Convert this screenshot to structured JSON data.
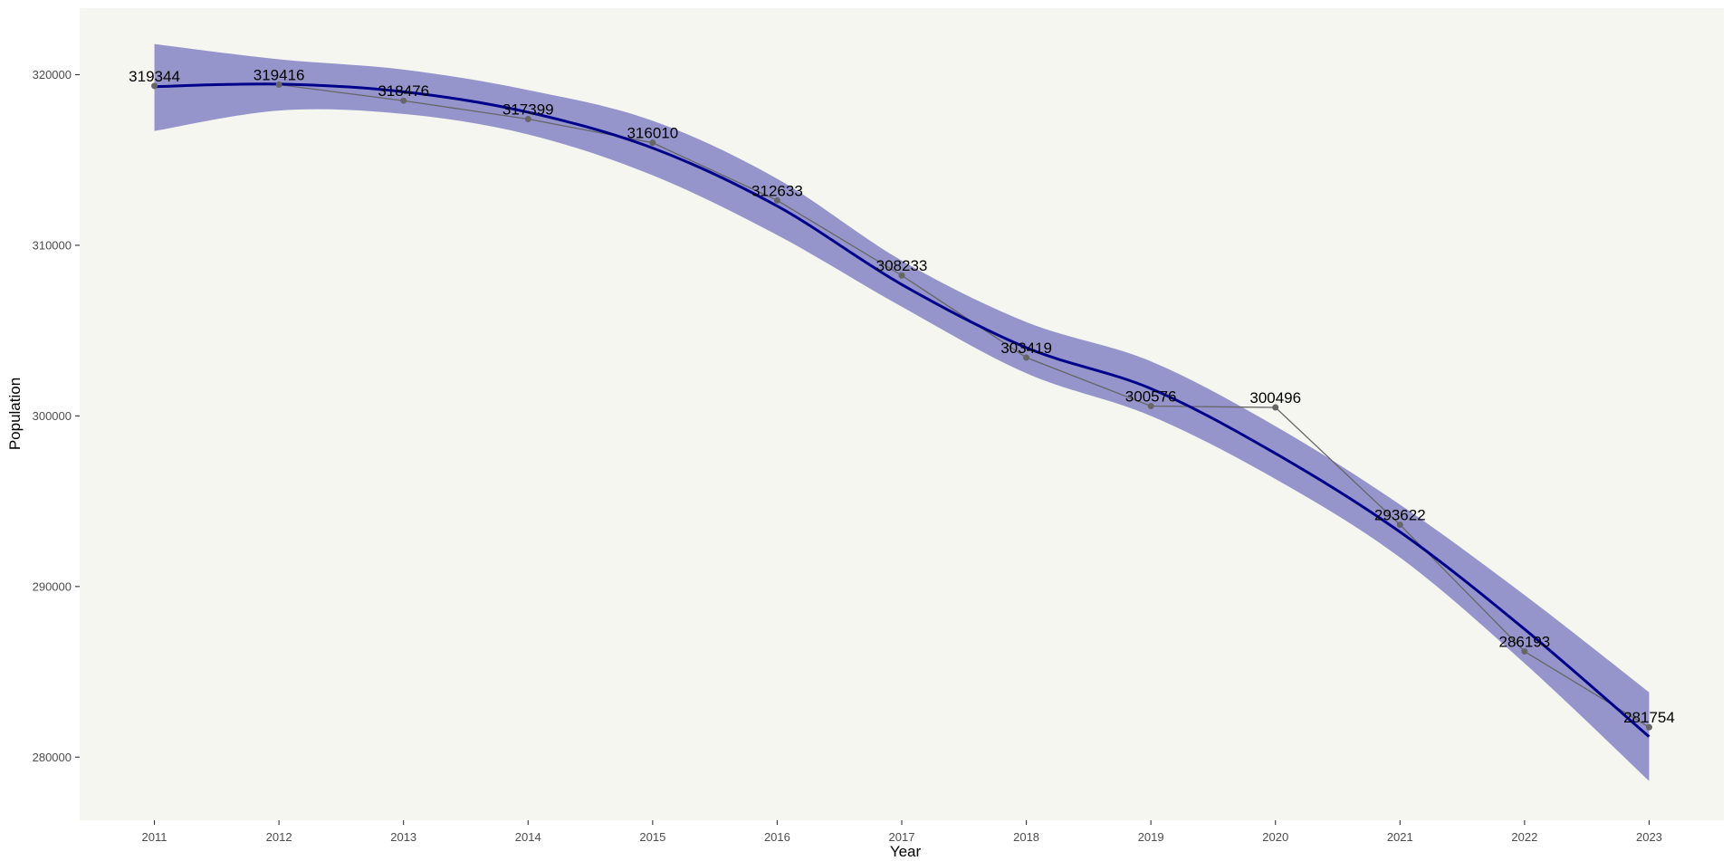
{
  "chart_data": {
    "type": "line",
    "title": "",
    "xlabel": "Year",
    "ylabel": "Population",
    "x": [
      2011,
      2012,
      2013,
      2014,
      2015,
      2016,
      2017,
      2018,
      2019,
      2020,
      2021,
      2022,
      2023
    ],
    "series": [
      {
        "values": [
          319344,
          319416,
          318476,
          317399,
          316010,
          312633,
          308233,
          303419,
          300576,
          300496,
          293622,
          286193,
          281754
        ],
        "color": "#666666",
        "data_labels": [
          "319344",
          "319416",
          "318476",
          "317399",
          "316010",
          "312633",
          "308233",
          "303419",
          "300576",
          "300496",
          "293622",
          "286193",
          "281754"
        ]
      }
    ],
    "smooth_fit": {
      "method": "loess",
      "color": "#00008B",
      "band_color": "#8C8CC9",
      "x": [
        2011,
        2012,
        2013,
        2014,
        2015,
        2016,
        2017,
        2018,
        2019,
        2020,
        2021,
        2022,
        2023
      ],
      "y": [
        319300,
        319450,
        319000,
        317800,
        315700,
        312300,
        307700,
        304000,
        301600,
        297800,
        293200,
        287500,
        281200
      ],
      "lower": [
        316700,
        317900,
        317700,
        316500,
        314100,
        310600,
        306400,
        302500,
        300000,
        296300,
        291700,
        285500,
        278600
      ],
      "upper": [
        321800,
        320900,
        320300,
        319100,
        317300,
        313900,
        309100,
        305500,
        303200,
        299400,
        294800,
        289500,
        283800
      ]
    },
    "x_ticks": [
      "2011",
      "2012",
      "2013",
      "2014",
      "2015",
      "2016",
      "2017",
      "2018",
      "2019",
      "2020",
      "2021",
      "2022",
      "2023"
    ],
    "y_ticks": [
      "280000",
      "290000",
      "300000",
      "310000",
      "320000"
    ],
    "xlim": [
      2010.4,
      2023.6
    ],
    "ylim": [
      276300,
      323900
    ],
    "grid": false,
    "legend": "none",
    "panel_background": "#F6F6F1"
  }
}
